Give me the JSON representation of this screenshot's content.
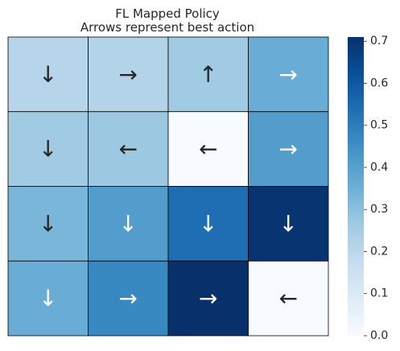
{
  "chart_data": {
    "type": "heatmap",
    "title": "FL Mapped Policy",
    "subtitle": "Arrows represent best action",
    "rows": 4,
    "cols": 4,
    "values": [
      [
        0.21,
        0.22,
        0.26,
        0.36
      ],
      [
        0.26,
        0.27,
        0.0,
        0.41
      ],
      [
        0.33,
        0.41,
        0.54,
        0.7
      ],
      [
        0.36,
        0.47,
        0.71,
        0.0
      ]
    ],
    "annotations": [
      [
        "↓",
        "→",
        "↑",
        "→"
      ],
      [
        "↓",
        "←",
        "←",
        "→"
      ],
      [
        "↓",
        "↓",
        "↓",
        "↓"
      ],
      [
        "↓",
        "→",
        "→",
        "←"
      ]
    ],
    "colormap": "Blues",
    "colorbar": {
      "vmin": 0.0,
      "vmax": 0.71,
      "ticks": [
        0.0,
        0.1,
        0.2,
        0.3,
        0.4,
        0.5,
        0.6,
        0.7
      ],
      "tick_labels": [
        "0.0",
        "0.1",
        "0.2",
        "0.3",
        "0.4",
        "0.5",
        "0.6",
        "0.7"
      ]
    },
    "grid": true,
    "xticks": [],
    "yticks": []
  }
}
